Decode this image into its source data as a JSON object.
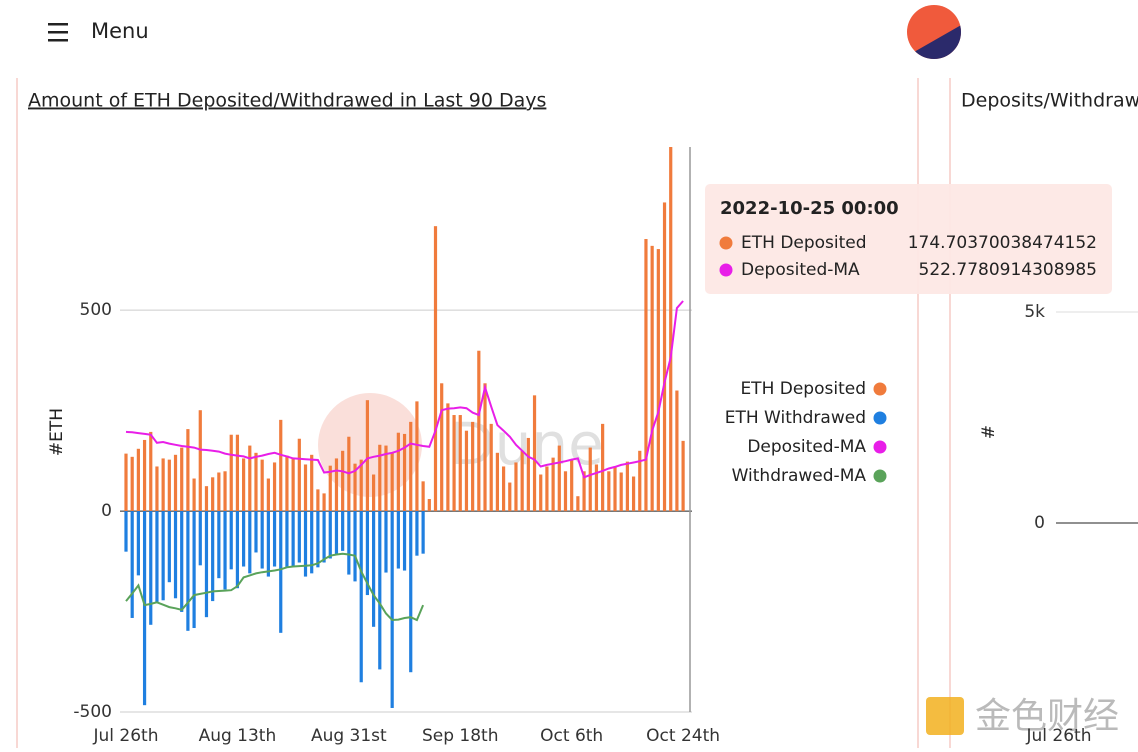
{
  "header": {
    "menu": "Menu"
  },
  "chart_data": [
    {
      "type": "bar",
      "title": "Amount of ETH Deposited/Withdrawed in Last 90 Days",
      "ylabel": "#ETH",
      "categories": [
        "Jul 26th",
        null,
        null,
        null,
        null,
        null,
        null,
        null,
        null,
        null,
        null,
        null,
        null,
        null,
        null,
        null,
        null,
        null,
        "Aug 13th",
        null,
        null,
        null,
        null,
        null,
        null,
        null,
        null,
        null,
        null,
        null,
        null,
        null,
        null,
        null,
        null,
        null,
        "Aug 31st",
        null,
        null,
        null,
        null,
        null,
        null,
        null,
        null,
        null,
        null,
        null,
        null,
        null,
        null,
        null,
        null,
        null,
        "Sep 18th",
        null,
        null,
        null,
        null,
        null,
        null,
        null,
        null,
        null,
        null,
        null,
        null,
        null,
        null,
        null,
        null,
        null,
        "Oct 6th",
        null,
        null,
        null,
        null,
        null,
        null,
        null,
        null,
        null,
        null,
        null,
        null,
        null,
        null,
        null,
        null,
        null,
        "Oct 24th"
      ],
      "series": [
        {
          "name": "ETH Deposited",
          "color": "#f07b3c",
          "values": [
            143,
            135,
            155,
            177,
            197,
            111,
            131,
            128,
            140,
            158,
            204,
            81,
            251,
            62,
            84,
            96,
            99,
            190,
            190,
            131,
            163,
            145,
            128,
            81,
            121,
            227,
            138,
            131,
            180,
            116,
            140,
            54,
            44,
            113,
            131,
            150,
            185,
            118,
            128,
            276,
            91,
            165,
            163,
            145,
            195,
            192,
            222,
            273,
            74,
            30,
            709,
            318,
            268,
            239,
            239,
            200,
            222,
            399,
            318,
            217,
            145,
            111,
            71,
            121,
            150,
            182,
            288,
            91,
            111,
            133,
            163,
            99,
            128,
            37,
            99,
            158,
            116,
            217,
            99,
            111,
            96,
            123,
            86,
            150,
            677,
            660,
            652,
            768,
            906,
            300,
            174.70370038474152
          ]
        },
        {
          "name": "ETH Withdrawed",
          "color": "#1f7fe0",
          "values": [
            -101,
            -266,
            -160,
            -483,
            -283,
            -229,
            -222,
            -177,
            -217,
            -251,
            -298,
            -291,
            -135,
            -264,
            -224,
            -167,
            -195,
            -145,
            -192,
            -138,
            -155,
            -103,
            -143,
            -163,
            -138,
            -303,
            -140,
            -138,
            -128,
            -163,
            -155,
            -140,
            -128,
            -118,
            -108,
            -99,
            -158,
            -175,
            -426,
            -209,
            -288,
            -394,
            -153,
            -490,
            -143,
            -148,
            -401,
            -111,
            -106,
            null,
            null,
            null,
            null,
            null,
            null,
            null,
            null,
            null,
            null,
            null,
            null,
            null,
            null,
            null,
            null,
            null,
            null,
            null,
            null,
            null,
            null,
            null,
            null,
            null,
            null,
            null,
            null,
            null,
            null,
            null,
            null,
            null,
            null,
            null,
            null,
            null,
            null,
            null,
            null,
            null,
            null
          ]
        },
        {
          "name": "Deposited-MA",
          "color": "#e81ee8",
          "type": "line",
          "values": [
            197,
            196,
            194,
            192,
            190,
            170,
            172,
            168,
            165,
            162,
            160,
            158,
            153,
            152,
            150,
            148,
            143,
            140,
            138,
            136,
            131,
            135,
            138,
            142,
            145,
            140,
            136,
            131,
            130,
            129,
            128,
            127,
            96,
            98,
            101,
            99,
            94,
            100,
            115,
            131,
            135,
            138,
            142,
            145,
            150,
            158,
            168,
            165,
            162,
            160,
            200,
            251,
            255,
            256,
            258,
            256,
            245,
            239,
            308,
            260,
            214,
            200,
            185,
            165,
            150,
            135,
            128,
            111,
            115,
            118,
            121,
            124,
            128,
            131,
            84,
            90,
            95,
            100,
            106,
            110,
            115,
            118,
            121,
            124,
            128,
            200,
            246,
            320,
            382,
            505,
            522.7780914308985
          ]
        },
        {
          "name": "Withdrawed-MA",
          "color": "#5aa35a",
          "type": "line",
          "values": [
            -224,
            -205,
            -185,
            -234,
            -231,
            -227,
            -233,
            -239,
            -242,
            -246,
            -228,
            -209,
            -206,
            -203,
            -200,
            -199,
            -198,
            -197,
            -187,
            -165,
            -160,
            -155,
            -152,
            -150,
            -148,
            -145,
            -140,
            -138,
            -137,
            -136,
            -135,
            -130,
            -120,
            -111,
            -108,
            -106,
            -108,
            -111,
            -150,
            -180,
            -209,
            -230,
            -255,
            -271,
            -270,
            -266,
            -264,
            -271,
            -234,
            null,
            null,
            null,
            null,
            null,
            null,
            null,
            null,
            null,
            null,
            null,
            null,
            null,
            null,
            null,
            null,
            null,
            null,
            null,
            null,
            null,
            null,
            null,
            null,
            null,
            null,
            null,
            null,
            null,
            null,
            null,
            null,
            null,
            null,
            null,
            null,
            null,
            null,
            null,
            null,
            null,
            null
          ]
        }
      ],
      "ylim": [
        -500,
        906
      ],
      "yticks": [
        -500,
        0,
        500
      ],
      "grid": true,
      "legend": "right",
      "watermark": "Dune",
      "tooltip": {
        "title": "2022-10-25 00:00"
      }
    },
    {
      "type": "bar",
      "title": "Deposits/Withdraw",
      "ylabel": "#",
      "categories": [
        "Jul 26th"
      ],
      "ylim": [
        0,
        5000
      ],
      "yticks": [
        0,
        {
          "value": 5000,
          "label": "5k"
        }
      ]
    }
  ],
  "watermark": "金色财经"
}
